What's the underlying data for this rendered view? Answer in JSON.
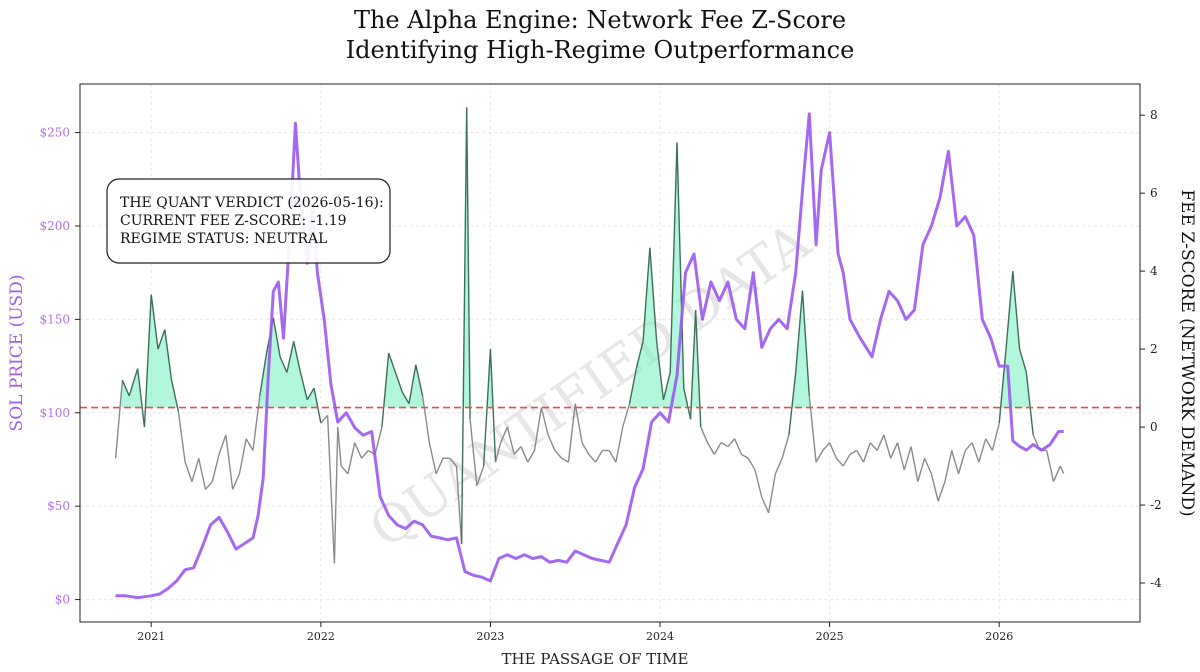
{
  "chart_data": {
    "type": "line",
    "title_lines": [
      "The Alpha Engine: Network Fee Z-Score",
      "Identifying High-Regime Outperformance"
    ],
    "xlabel": "THE PASSAGE OF TIME",
    "ylabel_left": "SOL PRICE (USD)",
    "ylabel_right": "FEE Z-SCORE (NETWORK DEMAND)",
    "x_ticks": [
      "2021",
      "2022",
      "2023",
      "2024",
      "2025",
      "2026"
    ],
    "x_range": [
      2020.58,
      2026.83
    ],
    "ylim_left": [
      -12,
      276
    ],
    "ylim_right": [
      -5.0,
      8.8
    ],
    "y_ticks_left": [
      0,
      50,
      100,
      150,
      200,
      250
    ],
    "y_tick_labels_left": [
      "$0",
      "$50",
      "$100",
      "$150",
      "$200",
      "$250"
    ],
    "y_ticks_right": [
      -4,
      -2,
      0,
      2,
      4,
      6,
      8
    ],
    "threshold": 0.5,
    "grid": true,
    "watermark": "QUANTIFIED DATA",
    "annotation": {
      "lines": [
        "THE QUANT VERDICT (2026-05-16):",
        "CURRENT FEE Z-SCORE: -1.19",
        "REGIME STATUS: NEUTRAL"
      ]
    },
    "series": [
      {
        "axis": "left",
        "color": "#9b59f0",
        "points": [
          [
            2020.79,
            2
          ],
          [
            2020.85,
            2
          ],
          [
            2020.92,
            1
          ],
          [
            2021.0,
            2
          ],
          [
            2021.05,
            3
          ],
          [
            2021.1,
            6
          ],
          [
            2021.15,
            10
          ],
          [
            2021.2,
            16
          ],
          [
            2021.25,
            17
          ],
          [
            2021.3,
            28
          ],
          [
            2021.35,
            40
          ],
          [
            2021.4,
            44
          ],
          [
            2021.45,
            36
          ],
          [
            2021.5,
            27
          ],
          [
            2021.55,
            30
          ],
          [
            2021.6,
            33
          ],
          [
            2021.63,
            45
          ],
          [
            2021.66,
            65
          ],
          [
            2021.69,
            120
          ],
          [
            2021.72,
            165
          ],
          [
            2021.75,
            170
          ],
          [
            2021.78,
            140
          ],
          [
            2021.82,
            200
          ],
          [
            2021.85,
            255
          ],
          [
            2021.88,
            215
          ],
          [
            2021.92,
            180
          ],
          [
            2021.95,
            210
          ],
          [
            2021.98,
            175
          ],
          [
            2022.02,
            150
          ],
          [
            2022.06,
            115
          ],
          [
            2022.1,
            95
          ],
          [
            2022.15,
            100
          ],
          [
            2022.2,
            92
          ],
          [
            2022.25,
            88
          ],
          [
            2022.3,
            90
          ],
          [
            2022.35,
            55
          ],
          [
            2022.4,
            45
          ],
          [
            2022.45,
            40
          ],
          [
            2022.5,
            38
          ],
          [
            2022.55,
            42
          ],
          [
            2022.6,
            40
          ],
          [
            2022.65,
            34
          ],
          [
            2022.7,
            33
          ],
          [
            2022.75,
            32
          ],
          [
            2022.8,
            33
          ],
          [
            2022.85,
            15
          ],
          [
            2022.9,
            13
          ],
          [
            2022.95,
            12
          ],
          [
            2023.0,
            10
          ],
          [
            2023.05,
            22
          ],
          [
            2023.1,
            24
          ],
          [
            2023.15,
            22
          ],
          [
            2023.2,
            24
          ],
          [
            2023.25,
            22
          ],
          [
            2023.3,
            23
          ],
          [
            2023.35,
            20
          ],
          [
            2023.4,
            21
          ],
          [
            2023.45,
            20
          ],
          [
            2023.5,
            26
          ],
          [
            2023.55,
            24
          ],
          [
            2023.6,
            22
          ],
          [
            2023.65,
            21
          ],
          [
            2023.7,
            20
          ],
          [
            2023.75,
            30
          ],
          [
            2023.8,
            40
          ],
          [
            2023.85,
            60
          ],
          [
            2023.9,
            70
          ],
          [
            2023.95,
            95
          ],
          [
            2024.0,
            100
          ],
          [
            2024.05,
            95
          ],
          [
            2024.1,
            120
          ],
          [
            2024.15,
            175
          ],
          [
            2024.2,
            185
          ],
          [
            2024.25,
            150
          ],
          [
            2024.3,
            170
          ],
          [
            2024.35,
            160
          ],
          [
            2024.4,
            170
          ],
          [
            2024.45,
            150
          ],
          [
            2024.5,
            145
          ],
          [
            2024.55,
            175
          ],
          [
            2024.6,
            135
          ],
          [
            2024.65,
            145
          ],
          [
            2024.7,
            150
          ],
          [
            2024.75,
            145
          ],
          [
            2024.8,
            175
          ],
          [
            2024.85,
            230
          ],
          [
            2024.88,
            260
          ],
          [
            2024.92,
            190
          ],
          [
            2024.95,
            230
          ],
          [
            2025.0,
            250
          ],
          [
            2025.05,
            185
          ],
          [
            2025.08,
            175
          ],
          [
            2025.12,
            150
          ],
          [
            2025.18,
            140
          ],
          [
            2025.25,
            130
          ],
          [
            2025.3,
            150
          ],
          [
            2025.35,
            165
          ],
          [
            2025.4,
            160
          ],
          [
            2025.45,
            150
          ],
          [
            2025.5,
            155
          ],
          [
            2025.55,
            190
          ],
          [
            2025.6,
            200
          ],
          [
            2025.65,
            215
          ],
          [
            2025.7,
            240
          ],
          [
            2025.75,
            200
          ],
          [
            2025.8,
            205
          ],
          [
            2025.85,
            195
          ],
          [
            2025.9,
            150
          ],
          [
            2025.95,
            140
          ],
          [
            2026.0,
            125
          ],
          [
            2026.05,
            125
          ],
          [
            2026.08,
            85
          ],
          [
            2026.12,
            82
          ],
          [
            2026.16,
            80
          ],
          [
            2026.2,
            83
          ],
          [
            2026.25,
            80
          ],
          [
            2026.3,
            83
          ],
          [
            2026.35,
            90
          ],
          [
            2026.38,
            90
          ]
        ]
      },
      {
        "axis": "right",
        "color": "#3d6f5a",
        "points": [
          [
            2020.79,
            -0.8
          ],
          [
            2020.83,
            1.2
          ],
          [
            2020.87,
            0.8
          ],
          [
            2020.92,
            1.5
          ],
          [
            2020.96,
            0.0
          ],
          [
            2021.0,
            3.4
          ],
          [
            2021.04,
            2.0
          ],
          [
            2021.08,
            2.5
          ],
          [
            2021.12,
            1.2
          ],
          [
            2021.16,
            0.4
          ],
          [
            2021.2,
            -0.9
          ],
          [
            2021.24,
            -1.4
          ],
          [
            2021.28,
            -0.8
          ],
          [
            2021.32,
            -1.6
          ],
          [
            2021.36,
            -1.4
          ],
          [
            2021.4,
            -0.7
          ],
          [
            2021.44,
            -0.2
          ],
          [
            2021.48,
            -1.6
          ],
          [
            2021.52,
            -1.2
          ],
          [
            2021.56,
            -0.3
          ],
          [
            2021.6,
            -0.6
          ],
          [
            2021.64,
            0.8
          ],
          [
            2021.68,
            1.9
          ],
          [
            2021.72,
            2.8
          ],
          [
            2021.76,
            1.8
          ],
          [
            2021.8,
            1.4
          ],
          [
            2021.84,
            2.2
          ],
          [
            2021.88,
            1.4
          ],
          [
            2021.92,
            0.7
          ],
          [
            2021.96,
            1.0
          ],
          [
            2022.0,
            0.1
          ],
          [
            2022.04,
            0.3
          ],
          [
            2022.08,
            -3.5
          ],
          [
            2022.1,
            0.0
          ],
          [
            2022.12,
            -1.0
          ],
          [
            2022.16,
            -1.2
          ],
          [
            2022.2,
            -0.4
          ],
          [
            2022.24,
            -0.8
          ],
          [
            2022.28,
            -0.6
          ],
          [
            2022.32,
            -0.7
          ],
          [
            2022.36,
            0.0
          ],
          [
            2022.4,
            1.9
          ],
          [
            2022.44,
            1.4
          ],
          [
            2022.48,
            0.9
          ],
          [
            2022.52,
            0.6
          ],
          [
            2022.56,
            1.6
          ],
          [
            2022.6,
            0.8
          ],
          [
            2022.64,
            -0.4
          ],
          [
            2022.68,
            -1.2
          ],
          [
            2022.72,
            -0.8
          ],
          [
            2022.76,
            -0.8
          ],
          [
            2022.8,
            -1.0
          ],
          [
            2022.83,
            -3.0
          ],
          [
            2022.86,
            8.2
          ],
          [
            2022.88,
            0.2
          ],
          [
            2022.92,
            -1.5
          ],
          [
            2022.96,
            -1.0
          ],
          [
            2023.0,
            2.0
          ],
          [
            2023.03,
            -0.9
          ],
          [
            2023.06,
            -0.4
          ],
          [
            2023.1,
            0.0
          ],
          [
            2023.14,
            -0.7
          ],
          [
            2023.18,
            -0.5
          ],
          [
            2023.22,
            -0.9
          ],
          [
            2023.26,
            -0.6
          ],
          [
            2023.3,
            0.5
          ],
          [
            2023.34,
            -0.2
          ],
          [
            2023.38,
            -0.6
          ],
          [
            2023.42,
            -0.8
          ],
          [
            2023.46,
            -0.9
          ],
          [
            2023.5,
            0.6
          ],
          [
            2023.54,
            -0.4
          ],
          [
            2023.58,
            -0.7
          ],
          [
            2023.62,
            -0.9
          ],
          [
            2023.66,
            -0.6
          ],
          [
            2023.7,
            -0.6
          ],
          [
            2023.74,
            -0.9
          ],
          [
            2023.78,
            0.0
          ],
          [
            2023.82,
            0.6
          ],
          [
            2023.86,
            1.5
          ],
          [
            2023.9,
            2.2
          ],
          [
            2023.94,
            4.6
          ],
          [
            2023.98,
            2.2
          ],
          [
            2024.02,
            0.7
          ],
          [
            2024.06,
            1.4
          ],
          [
            2024.1,
            7.3
          ],
          [
            2024.14,
            1.0
          ],
          [
            2024.18,
            0.2
          ],
          [
            2024.21,
            3.0
          ],
          [
            2024.24,
            0.0
          ],
          [
            2024.28,
            -0.4
          ],
          [
            2024.32,
            -0.7
          ],
          [
            2024.36,
            -0.4
          ],
          [
            2024.4,
            -0.5
          ],
          [
            2024.44,
            -0.3
          ],
          [
            2024.48,
            -0.7
          ],
          [
            2024.52,
            -0.8
          ],
          [
            2024.56,
            -1.1
          ],
          [
            2024.6,
            -1.8
          ],
          [
            2024.64,
            -2.2
          ],
          [
            2024.68,
            -1.2
          ],
          [
            2024.72,
            -0.8
          ],
          [
            2024.76,
            -0.2
          ],
          [
            2024.8,
            1.4
          ],
          [
            2024.84,
            3.5
          ],
          [
            2024.88,
            0.8
          ],
          [
            2024.92,
            -0.9
          ],
          [
            2024.96,
            -0.6
          ],
          [
            2025.0,
            -0.4
          ],
          [
            2025.04,
            -0.8
          ],
          [
            2025.08,
            -1.0
          ],
          [
            2025.12,
            -0.7
          ],
          [
            2025.16,
            -0.6
          ],
          [
            2025.2,
            -0.9
          ],
          [
            2025.24,
            -0.4
          ],
          [
            2025.28,
            -0.6
          ],
          [
            2025.32,
            -0.2
          ],
          [
            2025.36,
            -0.8
          ],
          [
            2025.4,
            -0.4
          ],
          [
            2025.44,
            -1.1
          ],
          [
            2025.48,
            -0.5
          ],
          [
            2025.52,
            -1.4
          ],
          [
            2025.56,
            -0.8
          ],
          [
            2025.6,
            -1.2
          ],
          [
            2025.64,
            -1.9
          ],
          [
            2025.68,
            -1.4
          ],
          [
            2025.72,
            -0.6
          ],
          [
            2025.76,
            -1.2
          ],
          [
            2025.8,
            -0.6
          ],
          [
            2025.84,
            -0.4
          ],
          [
            2025.88,
            -0.9
          ],
          [
            2025.92,
            -0.3
          ],
          [
            2025.96,
            -0.6
          ],
          [
            2026.0,
            0.1
          ],
          [
            2026.04,
            2.0
          ],
          [
            2026.08,
            4.0
          ],
          [
            2026.12,
            2.0
          ],
          [
            2026.16,
            1.4
          ],
          [
            2026.2,
            -0.2
          ],
          [
            2026.24,
            -0.6
          ],
          [
            2026.28,
            -0.6
          ],
          [
            2026.32,
            -1.4
          ],
          [
            2026.36,
            -1.0
          ],
          [
            2026.38,
            -1.19
          ]
        ]
      }
    ]
  }
}
